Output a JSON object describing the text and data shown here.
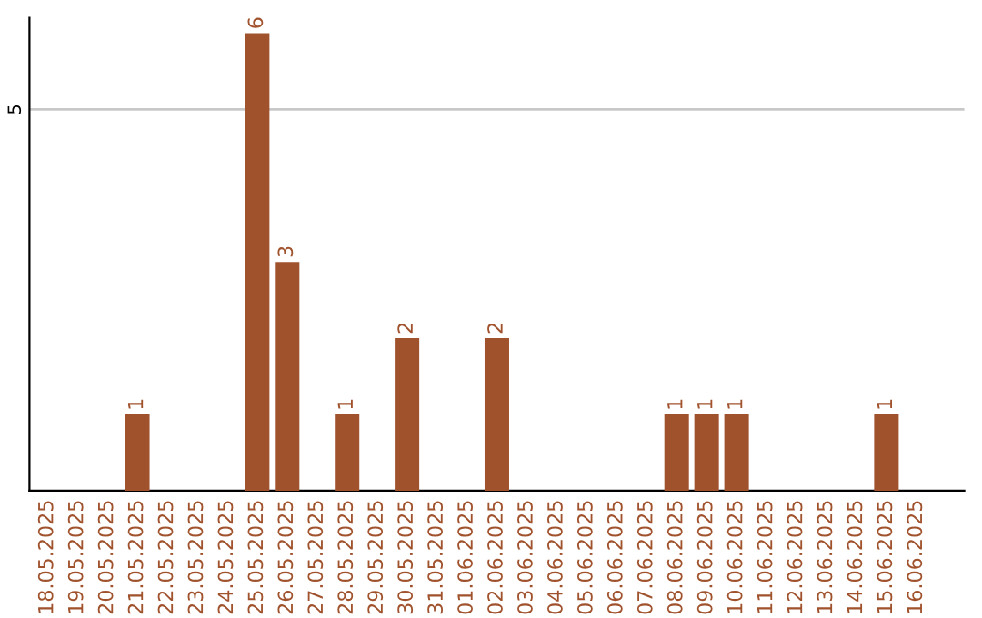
{
  "chart_data": {
    "type": "bar",
    "categories": [
      "18.05.2025",
      "19.05.2025",
      "20.05.2025",
      "21.05.2025",
      "22.05.2025",
      "23.05.2025",
      "24.05.2025",
      "25.05.2025",
      "26.05.2025",
      "27.05.2025",
      "28.05.2025",
      "29.05.2025",
      "30.05.2025",
      "31.05.2025",
      "01.06.2025",
      "02.06.2025",
      "03.06.2025",
      "04.06.2025",
      "05.06.2025",
      "06.06.2025",
      "07.06.2025",
      "08.06.2025",
      "09.06.2025",
      "10.06.2025",
      "11.06.2025",
      "12.06.2025",
      "13.06.2025",
      "14.06.2025",
      "15.06.2025",
      "16.06.2025"
    ],
    "values": [
      0,
      0,
      0,
      1,
      0,
      0,
      0,
      6,
      3,
      0,
      1,
      0,
      2,
      0,
      0,
      2,
      0,
      0,
      0,
      0,
      0,
      1,
      1,
      1,
      0,
      0,
      0,
      0,
      1,
      0
    ],
    "value_labels": [
      null,
      null,
      null,
      "1",
      null,
      null,
      null,
      "6",
      "3",
      null,
      "1",
      null,
      "2",
      null,
      null,
      "2",
      null,
      null,
      null,
      null,
      null,
      "1",
      "1",
      "1",
      null,
      null,
      null,
      null,
      "1",
      null
    ],
    "color": "#a0522d",
    "ylim": [
      0,
      6.2
    ],
    "yticks": [
      5
    ],
    "grid": "y",
    "legend": false
  }
}
